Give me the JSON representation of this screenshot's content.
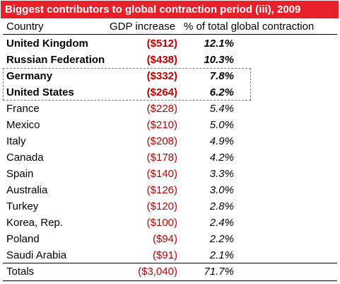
{
  "title": "Biggest contributors to global contraction period (iii), 2009",
  "columns": {
    "country": "Country",
    "gdp": "GDP increase",
    "pct": "% of total global contraction"
  },
  "rows": [
    {
      "country": "United Kingdom",
      "gdp": "($512)",
      "pct": "12.1%",
      "bold": true
    },
    {
      "country": "Russian Federation",
      "gdp": "($438)",
      "pct": "10.3%",
      "bold": true
    },
    {
      "country": "Germany",
      "gdp": "($332)",
      "pct": "7.8%",
      "bold": true
    },
    {
      "country": "United States",
      "gdp": "($264)",
      "pct": "6.2%",
      "bold": true
    },
    {
      "country": "France",
      "gdp": "($228)",
      "pct": "5.4%",
      "bold": false
    },
    {
      "country": "Mexico",
      "gdp": "($210)",
      "pct": "5.0%",
      "bold": false
    },
    {
      "country": "Italy",
      "gdp": "($208)",
      "pct": "4.9%",
      "bold": false
    },
    {
      "country": "Canada",
      "gdp": "($178)",
      "pct": "4.2%",
      "bold": false
    },
    {
      "country": "Spain",
      "gdp": "($140)",
      "pct": "3.3%",
      "bold": false
    },
    {
      "country": "Australia",
      "gdp": "($126)",
      "pct": "3.0%",
      "bold": false
    },
    {
      "country": "Turkey",
      "gdp": "($120)",
      "pct": "2.8%",
      "bold": false
    },
    {
      "country": "Korea, Rep.",
      "gdp": "($100)",
      "pct": "2.4%",
      "bold": false
    },
    {
      "country": "Poland",
      "gdp": "($94)",
      "pct": "2.2%",
      "bold": false
    },
    {
      "country": "Saudi Arabia",
      "gdp": "($91)",
      "pct": "2.1%",
      "bold": false
    }
  ],
  "totals": {
    "label": "Totals",
    "gdp": "($3,040)",
    "pct": "71.7%"
  },
  "colors": {
    "banner": "#e8202a",
    "negative": "#c00000"
  }
}
